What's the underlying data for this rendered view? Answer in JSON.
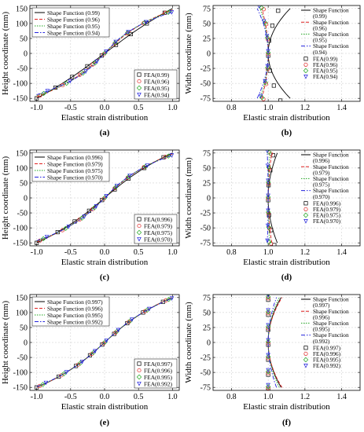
{
  "styles": {
    "colors": {
      "black": "#000000",
      "red": "#e02020",
      "green": "#21a821",
      "blue": "#2222dd",
      "grid": "#c8c8c8"
    }
  },
  "chart_data": [
    {
      "id": "a",
      "panel_label": "(a)",
      "type": "line",
      "xlabel": "Elastic strain distribution",
      "ylabel": "Height coordinate (mm)",
      "xlim": [
        -1.1,
        1.1
      ],
      "ylim": [
        -160,
        160
      ],
      "xticks": [
        -1.0,
        -0.5,
        0.0,
        0.5,
        1.0
      ],
      "xtick_labels": [
        "-1.0",
        "-0.5",
        "0.0",
        "0.5",
        "1.0"
      ],
      "yticks": [
        -150,
        -100,
        -50,
        0,
        50,
        100,
        150
      ],
      "ytick_labels": [
        "-150",
        "-100",
        "-50",
        "0",
        "50",
        "100",
        "150"
      ],
      "grid": true,
      "legend_lines": {
        "placement": "top-left",
        "entries": [
          "Shape Function (0.99)",
          "Shape Function (0.96)",
          "Shape Function (0.95)",
          "Shape Function (0.94)"
        ]
      },
      "legend_markers": {
        "placement": "bottom-right",
        "entries": [
          "FEA(0.99)",
          "FEA(0.96)",
          "FEA(0.95)",
          "FEA(0.94)"
        ]
      },
      "series": [
        {
          "name": "Shape Function (0.99)",
          "color": "#000000",
          "dash": "solid",
          "marker": "square",
          "mode": "axial",
          "y_end": 150,
          "k": 0.12,
          "x_min": -1.0,
          "x_max": 1.0
        },
        {
          "name": "Shape Function (0.96)",
          "color": "#e02020",
          "dash": "dashed",
          "marker": "circle",
          "mode": "axial",
          "y_end": 145,
          "k": 0.34,
          "x_min": -1.0,
          "x_max": 1.0
        },
        {
          "name": "Shape Function (0.95)",
          "color": "#21a821",
          "dash": "dotted",
          "marker": "diamond",
          "mode": "axial",
          "y_end": 142,
          "k": 0.4,
          "x_min": -1.0,
          "x_max": 1.0
        },
        {
          "name": "Shape Function (0.94)",
          "color": "#2222dd",
          "dash": "dashdot",
          "marker": "triangle",
          "mode": "axial",
          "y_end": 138,
          "k": 0.45,
          "x_min": -1.0,
          "x_max": 1.0
        }
      ]
    },
    {
      "id": "b",
      "panel_label": "(b)",
      "type": "line",
      "xlabel": "Elastic strain distribution",
      "ylabel": "Width coordinate (mm)",
      "xlim": [
        0.7,
        1.5
      ],
      "ylim": [
        -80,
        80
      ],
      "xticks": [
        0.8,
        1.0,
        1.2,
        1.4
      ],
      "xtick_labels": [
        "0.8",
        "1.0",
        "1.2",
        "1.4"
      ],
      "yticks": [
        -75,
        -50,
        -25,
        0,
        25,
        50,
        75
      ],
      "ytick_labels": [
        "-75",
        "-50",
        "-25",
        "0",
        "25",
        "50",
        "75"
      ],
      "grid": true,
      "legend_lines": {
        "placement": "right",
        "entries": [
          "Shape Function",
          "(0.99)",
          "Shape Function",
          "(0.96)",
          "Shape Function",
          "(0.95)",
          "Shape Function",
          "(0.94)"
        ]
      },
      "legend_markers": {
        "placement": "right",
        "entries": [
          "FEA(0.99)",
          "FEA(0.96)",
          "FEA(0.95)",
          "FEA(0.94)"
        ]
      },
      "series": [
        {
          "name": "Shape Function (0.99)",
          "color": "#000000",
          "dash": "solid",
          "marker": "square",
          "mode": "width",
          "x_center": 1.0,
          "x_edge": 1.12,
          "y_half": 75,
          "pts_x_edge": 1.06
        },
        {
          "name": "Shape Function (0.96)",
          "color": "#e02020",
          "dash": "dashed",
          "marker": "circle",
          "mode": "width",
          "x_center": 1.0,
          "x_edge": 0.965,
          "y_half": 75,
          "pts_x_edge": 0.975
        },
        {
          "name": "Shape Function (0.95)",
          "color": "#21a821",
          "dash": "dotted",
          "marker": "diamond",
          "mode": "width",
          "x_center": 1.0,
          "x_edge": 0.955,
          "y_half": 75,
          "pts_x_edge": 0.965
        },
        {
          "name": "Shape Function (0.94)",
          "color": "#2222dd",
          "dash": "dashdot",
          "marker": "triangle",
          "mode": "width",
          "x_center": 1.0,
          "x_edge": 0.94,
          "y_half": 75,
          "pts_x_edge": 0.955
        }
      ]
    },
    {
      "id": "c",
      "panel_label": "(c)",
      "type": "line",
      "xlabel": "Elastic strain distribution",
      "ylabel": "Height coordinate (mm)",
      "xlim": [
        -1.1,
        1.1
      ],
      "ylim": [
        -160,
        160
      ],
      "xticks": [
        -1.0,
        -0.5,
        0.0,
        0.5,
        1.0
      ],
      "xtick_labels": [
        "-1.0",
        "-0.5",
        "0.0",
        "0.5",
        "1.0"
      ],
      "yticks": [
        -150,
        -100,
        -50,
        0,
        50,
        100,
        150
      ],
      "ytick_labels": [
        "-150",
        "-100",
        "-50",
        "0",
        "50",
        "100",
        "150"
      ],
      "grid": true,
      "legend_lines": {
        "placement": "top-left",
        "entries": [
          "Shape Function (0.996)",
          "Shape Function (0.979)",
          "Shape Function (0.975)",
          "Shape Function (0.970)"
        ]
      },
      "legend_markers": {
        "placement": "bottom-right",
        "entries": [
          "FEA(0.996)",
          "FEA(0.979)",
          "FEA(0.975)",
          "FEA(0.970)"
        ]
      },
      "series": [
        {
          "name": "Shape Function (0.996)",
          "color": "#000000",
          "dash": "solid",
          "marker": "square",
          "mode": "axial",
          "y_end": 150,
          "k": 0.22,
          "x_min": -1.0,
          "x_max": 1.0
        },
        {
          "name": "Shape Function (0.979)",
          "color": "#e02020",
          "dash": "dashed",
          "marker": "circle",
          "mode": "axial",
          "y_end": 147,
          "k": 0.33,
          "x_min": -1.0,
          "x_max": 1.0
        },
        {
          "name": "Shape Function (0.975)",
          "color": "#21a821",
          "dash": "dotted",
          "marker": "diamond",
          "mode": "axial",
          "y_end": 145,
          "k": 0.36,
          "x_min": -1.0,
          "x_max": 1.0
        },
        {
          "name": "Shape Function (0.970)",
          "color": "#2222dd",
          "dash": "dashdot",
          "marker": "triangle",
          "mode": "axial",
          "y_end": 143,
          "k": 0.39,
          "x_min": -1.0,
          "x_max": 1.0
        }
      ]
    },
    {
      "id": "d",
      "panel_label": "(d)",
      "type": "line",
      "xlabel": "Elastic strain distribution",
      "ylabel": "Width coordinate (mm)",
      "xlim": [
        0.7,
        1.5
      ],
      "ylim": [
        -80,
        80
      ],
      "xticks": [
        0.8,
        1.0,
        1.2,
        1.4
      ],
      "xtick_labels": [
        "0.8",
        "1.0",
        "1.2",
        "1.4"
      ],
      "yticks": [
        -75,
        -50,
        -25,
        0,
        25,
        50,
        75
      ],
      "ytick_labels": [
        "-75",
        "-50",
        "-25",
        "0",
        "25",
        "50",
        "75"
      ],
      "grid": true,
      "legend_lines": {
        "placement": "right",
        "entries": [
          "Shape Function",
          "(0.996)",
          "Shape Function",
          "(0.979)",
          "Shape Function",
          "(0.975)",
          "Shape Function",
          "(0.970)"
        ]
      },
      "legend_markers": {
        "placement": "right",
        "entries": [
          "FEA(0.996)",
          "FEA(0.979)",
          "FEA(0.975)",
          "FEA(0.970)"
        ]
      },
      "series": [
        {
          "name": "Shape Function (0.996)",
          "color": "#000000",
          "dash": "solid",
          "marker": "square",
          "mode": "width",
          "x_center": 1.0,
          "x_edge": 1.05,
          "y_half": 75,
          "pts_x_edge": 1.03
        },
        {
          "name": "Shape Function (0.979)",
          "color": "#e02020",
          "dash": "dashed",
          "marker": "circle",
          "mode": "width",
          "x_center": 1.0,
          "x_edge": 1.02,
          "y_half": 75,
          "pts_x_edge": 1.015
        },
        {
          "name": "Shape Function (0.975)",
          "color": "#21a821",
          "dash": "dotted",
          "marker": "diamond",
          "mode": "width",
          "x_center": 1.0,
          "x_edge": 1.01,
          "y_half": 75,
          "pts_x_edge": 1.005
        },
        {
          "name": "Shape Function (0.970)",
          "color": "#2222dd",
          "dash": "dashdot",
          "marker": "triangle",
          "mode": "width",
          "x_center": 1.0,
          "x_edge": 0.995,
          "y_half": 75,
          "pts_x_edge": 0.995
        }
      ]
    },
    {
      "id": "e",
      "panel_label": "(e)",
      "type": "line",
      "xlabel": "Elastic strain distribution",
      "ylabel": "Height coordinate (mm)",
      "xlim": [
        -1.1,
        1.1
      ],
      "ylim": [
        -160,
        160
      ],
      "xticks": [
        -1.0,
        -0.5,
        0.0,
        0.5,
        1.0
      ],
      "xtick_labels": [
        "-1.0",
        "-0.5",
        "0.0",
        "0.5",
        "1.0"
      ],
      "yticks": [
        -150,
        -100,
        -50,
        0,
        50,
        100,
        150
      ],
      "ytick_labels": [
        "-150",
        "-100",
        "-50",
        "0",
        "50",
        "100",
        "150"
      ],
      "grid": true,
      "legend_lines": {
        "placement": "top-left",
        "entries": [
          "Shape Function (0.997)",
          "Shape Function (0.996)",
          "Shape Function (0.995)",
          "Shape Function (0.992)"
        ]
      },
      "legend_markers": {
        "placement": "bottom-right",
        "entries": [
          "FEA(0.997)",
          "FEA(0.996)",
          "FEA(0.995)",
          "FEA(0.992)"
        ]
      },
      "series": [
        {
          "name": "Shape Function (0.997)",
          "color": "#000000",
          "dash": "solid",
          "marker": "square",
          "mode": "axial",
          "y_end": 150,
          "k": 0.27,
          "x_min": -1.0,
          "x_max": 1.0
        },
        {
          "name": "Shape Function (0.996)",
          "color": "#e02020",
          "dash": "dashed",
          "marker": "circle",
          "mode": "axial",
          "y_end": 150,
          "k": 0.28,
          "x_min": -1.0,
          "x_max": 1.0
        },
        {
          "name": "Shape Function (0.995)",
          "color": "#21a821",
          "dash": "dotted",
          "marker": "diamond",
          "mode": "axial",
          "y_end": 149,
          "k": 0.29,
          "x_min": -1.0,
          "x_max": 1.0
        },
        {
          "name": "Shape Function (0.992)",
          "color": "#2222dd",
          "dash": "dashdot",
          "marker": "triangle",
          "mode": "axial",
          "y_end": 148,
          "k": 0.3,
          "x_min": -1.0,
          "x_max": 1.0
        }
      ]
    },
    {
      "id": "f",
      "panel_label": "(f)",
      "type": "line",
      "xlabel": "Elastic strain distribution",
      "ylabel": "Width coordinate (mm)",
      "xlim": [
        0.7,
        1.5
      ],
      "ylim": [
        -80,
        80
      ],
      "xticks": [
        0.8,
        1.0,
        1.2,
        1.4
      ],
      "xtick_labels": [
        "0.8",
        "1.0",
        "1.2",
        "1.4"
      ],
      "yticks": [
        -75,
        -50,
        -25,
        0,
        25,
        50,
        75
      ],
      "ytick_labels": [
        "-75",
        "-50",
        "-25",
        "0",
        "25",
        "50",
        "75"
      ],
      "grid": true,
      "legend_lines": {
        "placement": "right",
        "entries": [
          "Shape Function",
          "(0.997)",
          "Shape Function",
          "(0.996)",
          "Shape Function",
          "(0.995)",
          "Shape Function",
          "(0.992)"
        ]
      },
      "legend_markers": {
        "placement": "right",
        "entries": [
          "FEA(0.997)",
          "FEA(0.996)",
          "FEA(0.995)",
          "FEA(0.992)"
        ]
      },
      "series": [
        {
          "name": "Shape Function (0.997)",
          "color": "#000000",
          "dash": "solid",
          "marker": "square",
          "mode": "width",
          "x_center": 1.0,
          "x_edge": 1.07,
          "y_half": 75,
          "pts_x_edge": 1.0
        },
        {
          "name": "Shape Function (0.996)",
          "color": "#e02020",
          "dash": "dashed",
          "marker": "circle",
          "mode": "width",
          "x_center": 1.0,
          "x_edge": 1.075,
          "y_half": 75,
          "pts_x_edge": 1.0
        },
        {
          "name": "Shape Function (0.995)",
          "color": "#21a821",
          "dash": "dotted",
          "marker": "diamond",
          "mode": "width",
          "x_center": 1.0,
          "x_edge": 1.06,
          "y_half": 75,
          "pts_x_edge": 1.0
        },
        {
          "name": "Shape Function (0.992)",
          "color": "#2222dd",
          "dash": "dashdot",
          "marker": "triangle",
          "mode": "width",
          "x_center": 1.0,
          "x_edge": 1.045,
          "y_half": 75,
          "pts_x_edge": 1.0
        }
      ]
    }
  ]
}
